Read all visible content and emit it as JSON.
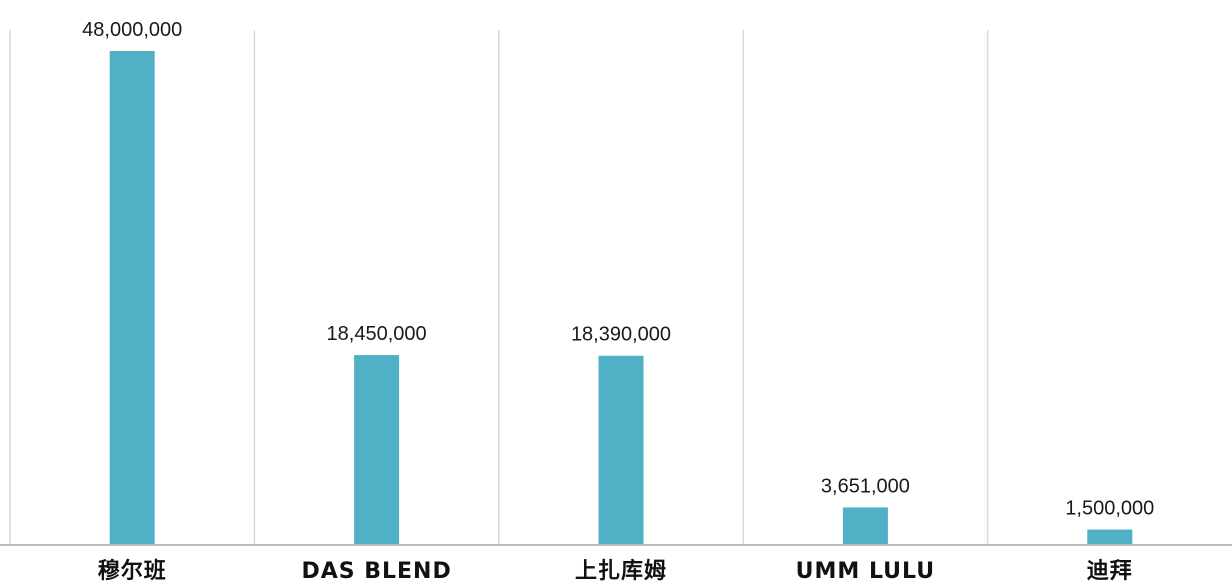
{
  "chart_data": {
    "type": "bar",
    "categories": [
      "穆尔班",
      "DAS BLEND",
      "上扎库姆",
      "UMM LULU",
      "迪拜"
    ],
    "values": [
      48000000,
      18450000,
      18390000,
      3651000,
      1500000
    ],
    "value_labels": [
      "48,000,000",
      "18,450,000",
      "18,390,000",
      "3,651,000",
      "1,500,000"
    ],
    "title": "",
    "xlabel": "",
    "ylabel": "",
    "ylim": [
      0,
      48000000
    ],
    "grid": "vertical separators",
    "bar_color": "#4fb0c6",
    "axis_color": "#bdbdbd",
    "grid_color": "#d9d9d9"
  }
}
